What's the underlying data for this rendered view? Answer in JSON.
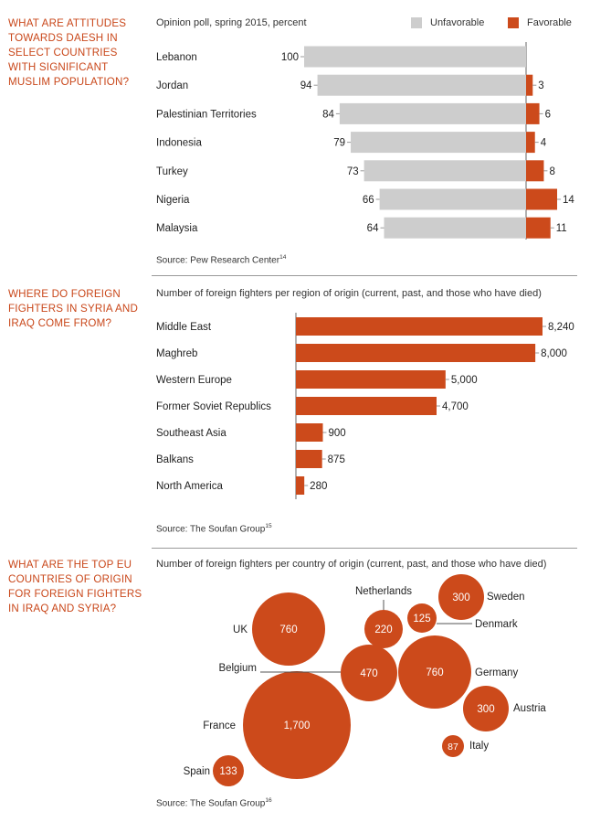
{
  "colors": {
    "favorable": "#cc4a1b",
    "unfavorable": "#cdcdcd",
    "accent": "#c9471a",
    "bar": "#cc4a1b"
  },
  "section1": {
    "question": "WHAT ARE ATTITUDES TOWARDS DAESH IN SELECT COUNTRIES WITH SIGNIFICANT MUSLIM POPULATION?",
    "subtitle": "Opinion poll, spring 2015, percent",
    "legend_unfavorable": "Unfavorable",
    "legend_favorable": "Favorable",
    "source": "Source: Pew Research Center",
    "source_note": "14"
  },
  "section2": {
    "question": "WHERE DO FOREIGN FIGHTERS IN SYRIA AND IRAQ COME FROM?",
    "subtitle": "Number of foreign fighters per region of origin (current, past, and those who have died)",
    "source": "Source: The Soufan Group",
    "source_note": "15"
  },
  "section3": {
    "question": "WHAT ARE THE TOP EU COUNTRIES OF ORIGIN FOR FOREIGN FIGHTERS IN IRAQ AND SYRIA?",
    "subtitle": "Number of foreign fighters per country of origin (current, past, and those who have died)",
    "source": "Source: The Soufan Group",
    "source_note": "16"
  },
  "chart_data": [
    {
      "type": "bar",
      "orientation": "diverging-horizontal",
      "categories": [
        "Lebanon",
        "Jordan",
        "Palestinian Territories",
        "Indonesia",
        "Turkey",
        "Nigeria",
        "Malaysia"
      ],
      "series": [
        {
          "name": "Unfavorable",
          "values": [
            100,
            94,
            84,
            79,
            73,
            66,
            64
          ]
        },
        {
          "name": "Favorable",
          "values": [
            null,
            3,
            6,
            4,
            8,
            14,
            11
          ]
        }
      ],
      "unit": "percent",
      "legend": "top-right",
      "grid": false
    },
    {
      "type": "bar",
      "orientation": "horizontal",
      "categories": [
        "Middle East",
        "Maghreb",
        "Western Europe",
        "Former Soviet Republics",
        "Southeast Asia",
        "Balkans",
        "North America"
      ],
      "values": [
        8240,
        8000,
        5000,
        4700,
        900,
        875,
        280
      ],
      "labels": [
        "8,240",
        "8,000",
        "5,000",
        "4,700",
        "900",
        "875",
        "280"
      ],
      "grid": false
    },
    {
      "type": "bubble",
      "categories": [
        "France",
        "UK",
        "Germany",
        "Belgium",
        "Sweden",
        "Austria",
        "Netherlands",
        "Spain",
        "Denmark",
        "Italy"
      ],
      "values": [
        1700,
        760,
        760,
        470,
        300,
        300,
        220,
        133,
        125,
        87
      ],
      "labels": [
        "1,700",
        "760",
        "760",
        "470",
        "300",
        "300",
        "220",
        "133",
        "125",
        "87"
      ]
    }
  ]
}
